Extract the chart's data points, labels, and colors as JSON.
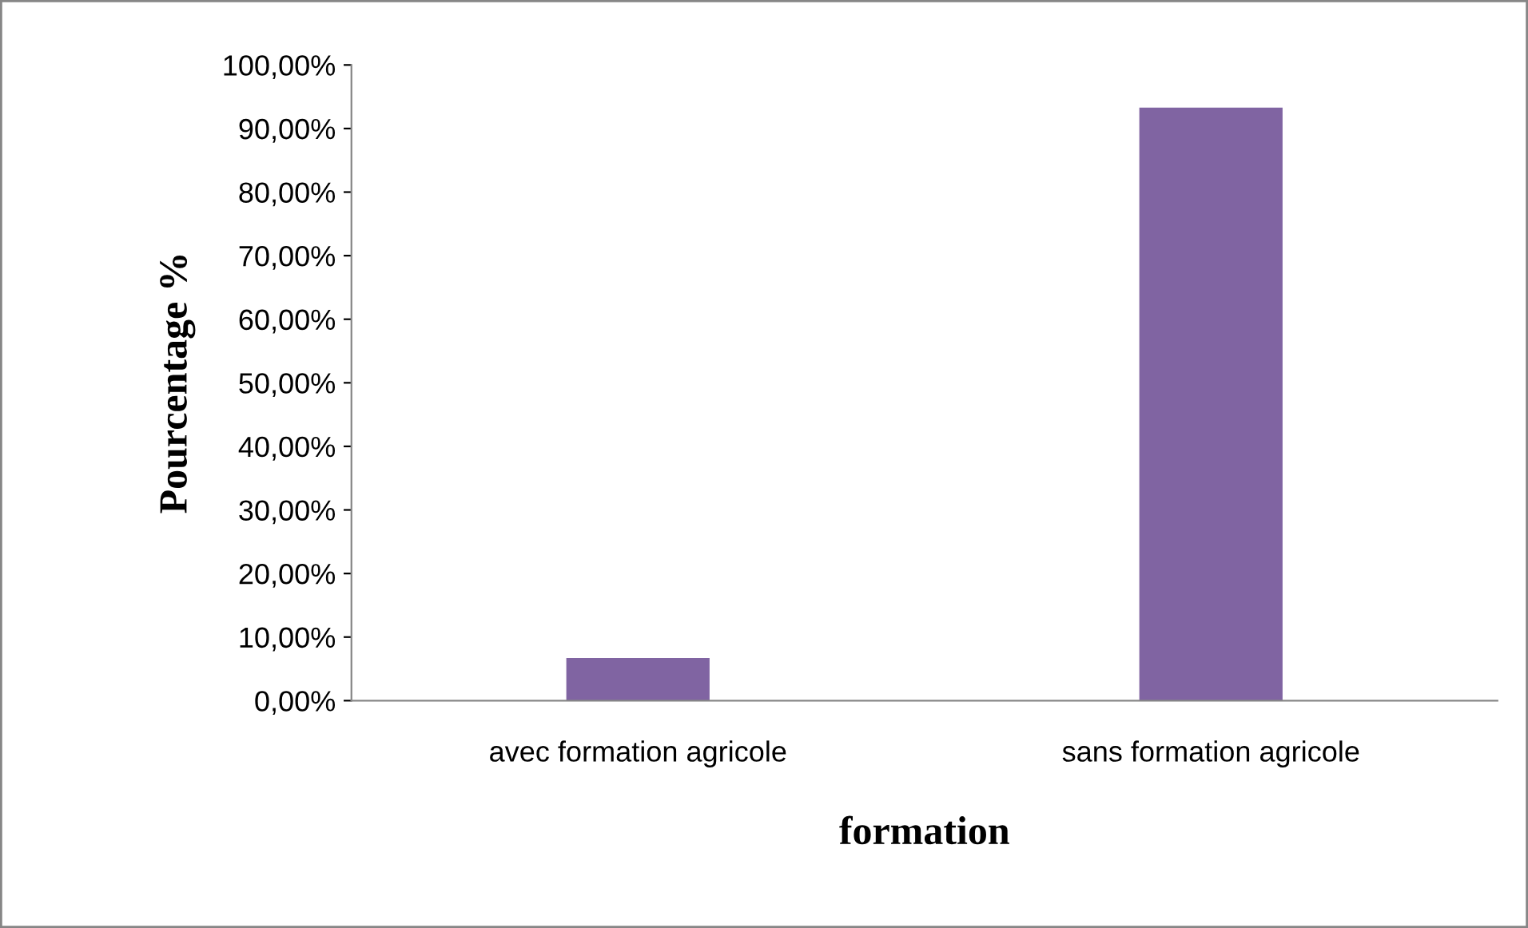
{
  "chart_data": {
    "type": "bar",
    "xlabel": "formation",
    "ylabel": "Pourcentage %",
    "categories": [
      "avec formation agricole",
      "sans formation agricole"
    ],
    "values": [
      6.7,
      93.3
    ],
    "color": "#8064a2",
    "ylim": [
      0,
      100
    ],
    "yticks": [
      {
        "value": 0,
        "label": "0,00%"
      },
      {
        "value": 10,
        "label": "10,00%"
      },
      {
        "value": 20,
        "label": "20,00%"
      },
      {
        "value": 30,
        "label": "30,00%"
      },
      {
        "value": 40,
        "label": "40,00%"
      },
      {
        "value": 50,
        "label": "50,00%"
      },
      {
        "value": 60,
        "label": "60,00%"
      },
      {
        "value": 70,
        "label": "70,00%"
      },
      {
        "value": 80,
        "label": "80,00%"
      },
      {
        "value": 90,
        "label": "90,00%"
      },
      {
        "value": 100,
        "label": "100,00%"
      }
    ],
    "grid": false,
    "legend": false
  }
}
